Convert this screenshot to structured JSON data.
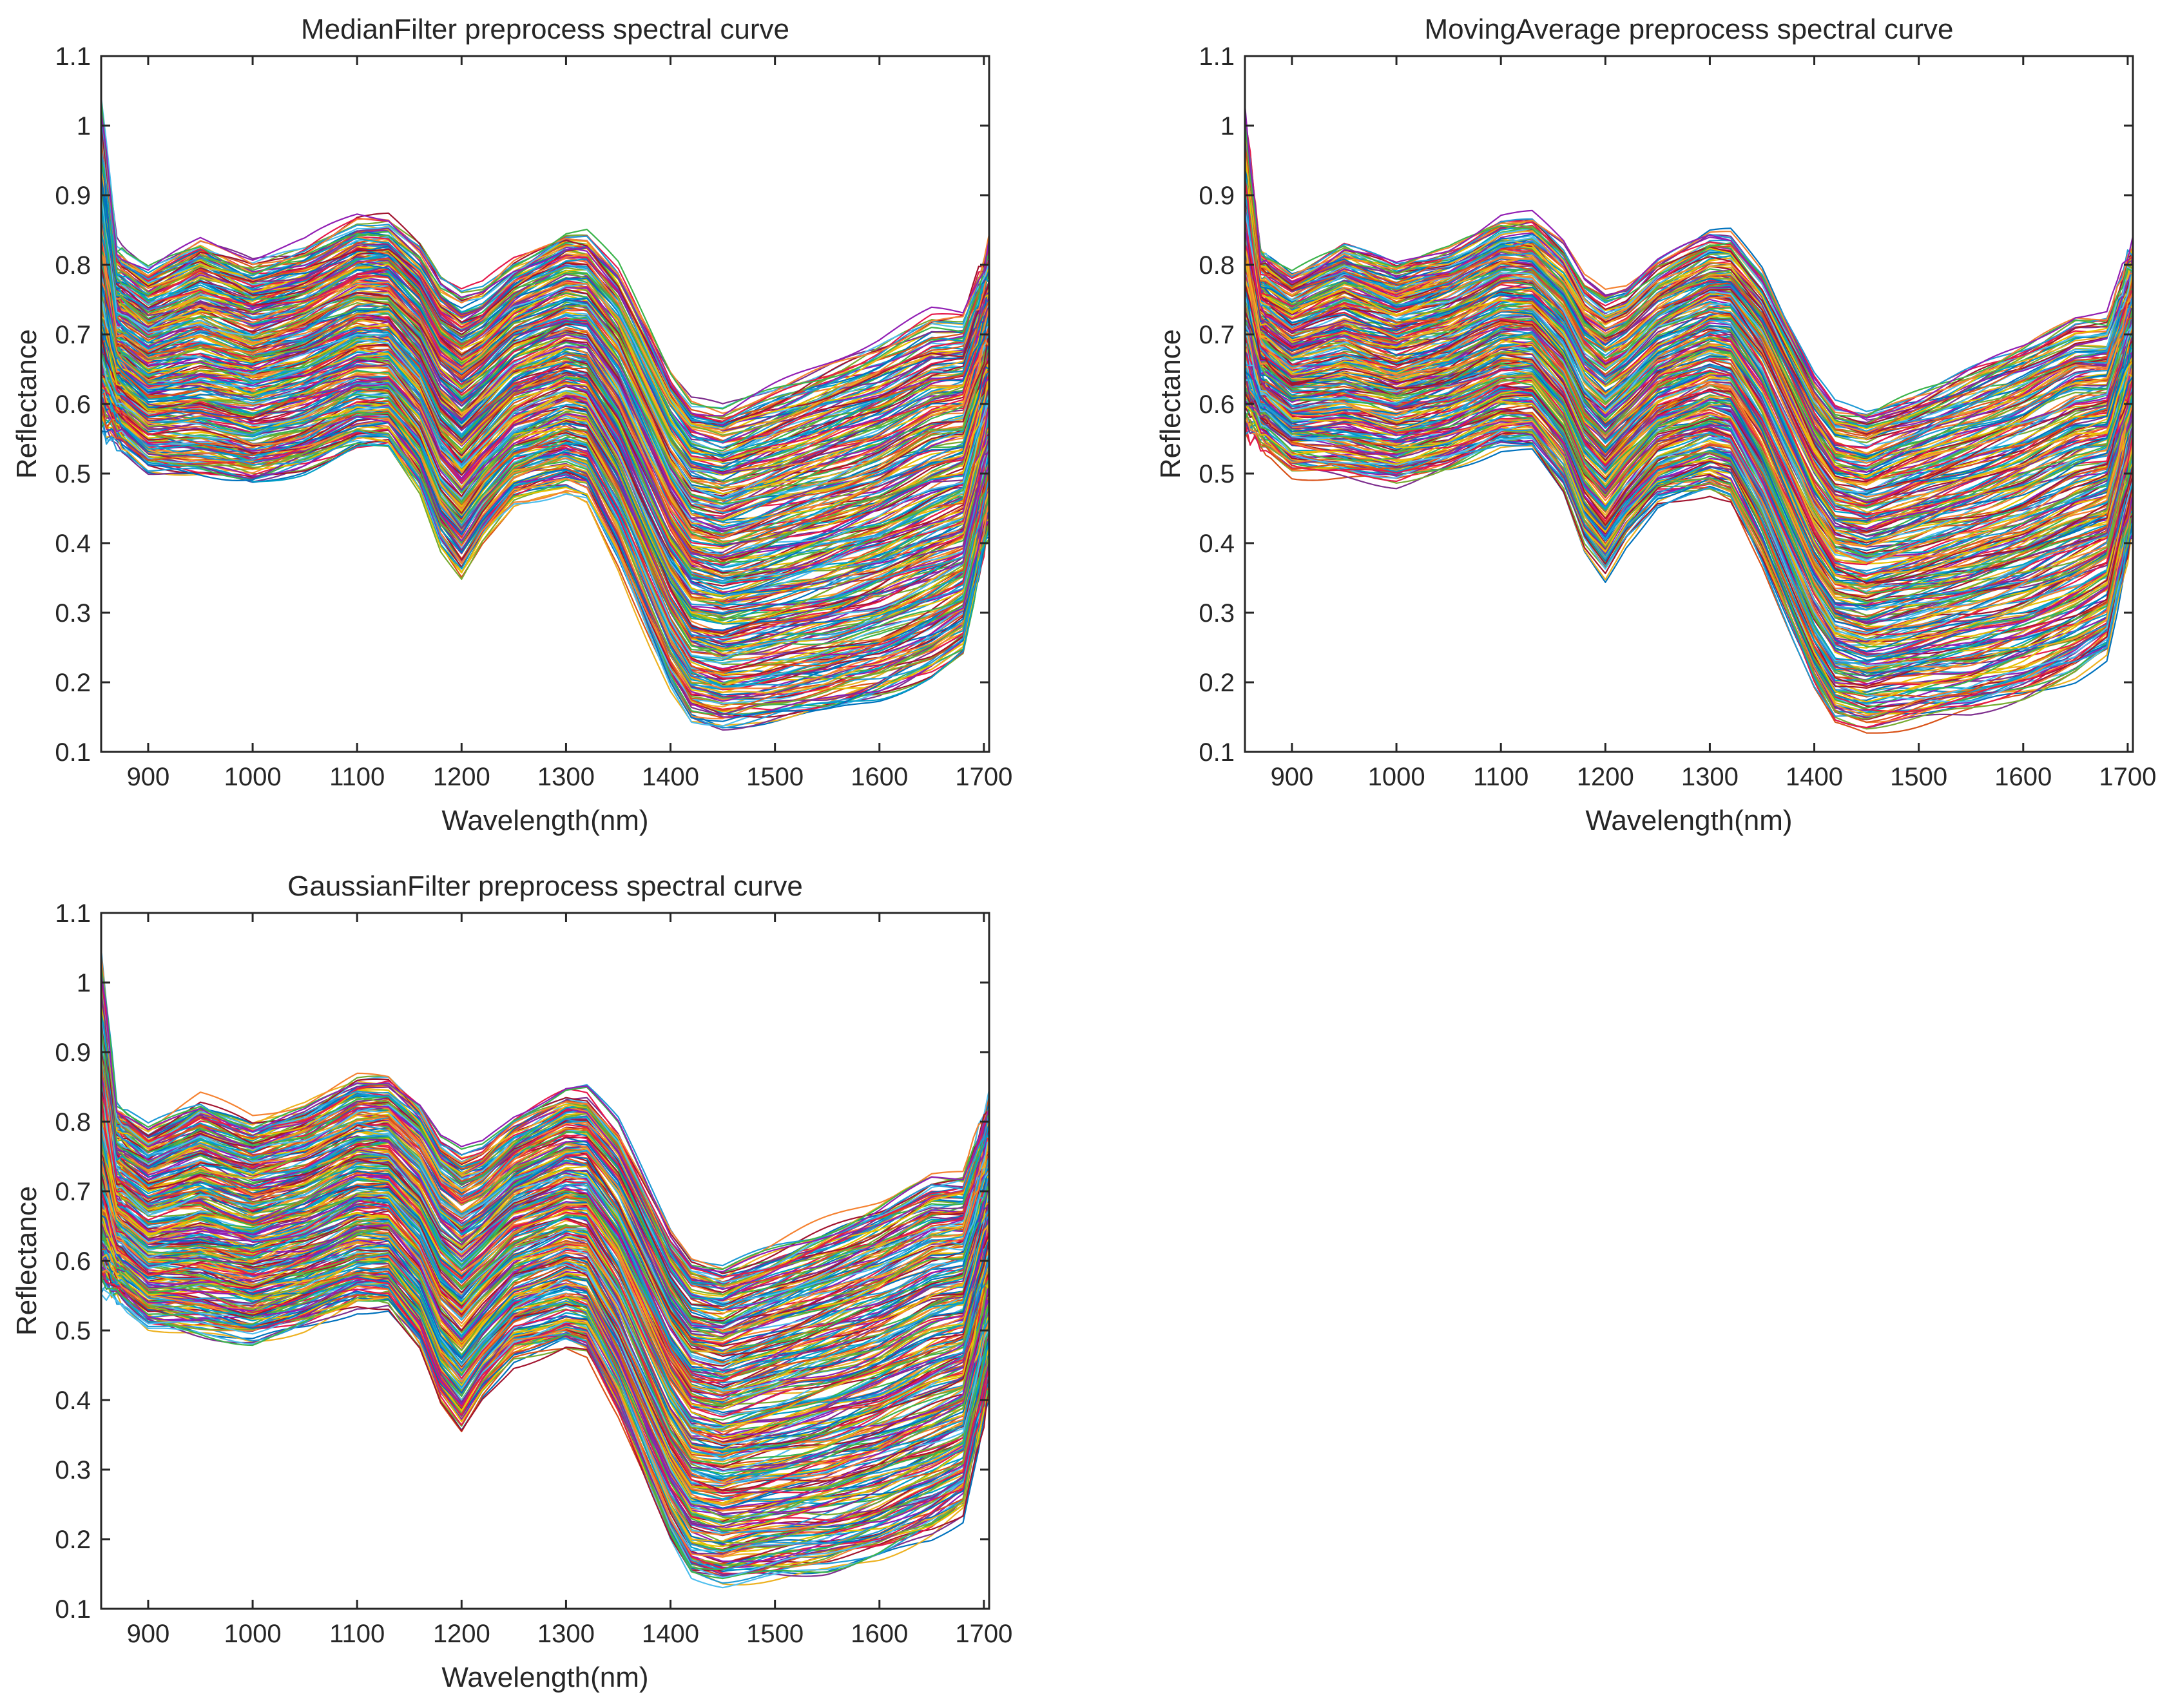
{
  "figure": {
    "description_panels": 3
  },
  "curve_colors": [
    "#0072BD",
    "#D95319",
    "#EDB120",
    "#7E2F8E",
    "#77AC30",
    "#4DBEEE",
    "#A2142F",
    "#E6194B",
    "#1F9BD6",
    "#F58231",
    "#3CB44B",
    "#911EB4",
    "#00A0C8",
    "#E6C200"
  ],
  "chart_data": [
    {
      "type": "line",
      "title": "MedianFilter preprocess spectral curve",
      "xlabel": "Wavelength(nm)",
      "ylabel": "Reflectance",
      "xlim": [
        855,
        1705
      ],
      "ylim": [
        0.1,
        1.1
      ],
      "xticks": [
        "900",
        "1000",
        "1100",
        "1200",
        "1300",
        "1400",
        "1500",
        "1600",
        "1700"
      ],
      "yticks": [
        "0.1",
        "0.2",
        "0.3",
        "0.4",
        "0.5",
        "0.6",
        "0.7",
        "0.8",
        "0.9",
        "1",
        "1.1"
      ],
      "series_count": 320,
      "envelope": {
        "x": [
          855,
          870,
          900,
          950,
          1000,
          1050,
          1100,
          1130,
          1160,
          1180,
          1200,
          1220,
          1250,
          1300,
          1320,
          1350,
          1380,
          1400,
          1420,
          1450,
          1500,
          1550,
          1600,
          1650,
          1680,
          1705
        ],
        "upper": [
          1.03,
          0.82,
          0.79,
          0.83,
          0.8,
          0.82,
          0.86,
          0.86,
          0.82,
          0.77,
          0.75,
          0.76,
          0.8,
          0.84,
          0.84,
          0.79,
          0.7,
          0.64,
          0.6,
          0.59,
          0.62,
          0.65,
          0.68,
          0.72,
          0.72,
          0.82
        ],
        "lower": [
          0.57,
          0.55,
          0.51,
          0.5,
          0.49,
          0.51,
          0.54,
          0.54,
          0.48,
          0.4,
          0.36,
          0.41,
          0.46,
          0.48,
          0.47,
          0.38,
          0.27,
          0.2,
          0.15,
          0.14,
          0.15,
          0.16,
          0.18,
          0.21,
          0.24,
          0.42
        ]
      }
    },
    {
      "type": "line",
      "title": "MovingAverage preprocess spectral curve",
      "xlabel": "Wavelength(nm)",
      "ylabel": "Reflectance",
      "xlim": [
        855,
        1705
      ],
      "ylim": [
        0.1,
        1.1
      ],
      "xticks": [
        "900",
        "1000",
        "1100",
        "1200",
        "1300",
        "1400",
        "1500",
        "1600",
        "1700"
      ],
      "yticks": [
        "0.1",
        "0.2",
        "0.3",
        "0.4",
        "0.5",
        "0.6",
        "0.7",
        "0.8",
        "0.9",
        "1",
        "1.1"
      ],
      "series_count": 320,
      "envelope": {
        "x": [
          855,
          870,
          900,
          950,
          1000,
          1050,
          1100,
          1130,
          1160,
          1180,
          1200,
          1220,
          1250,
          1300,
          1320,
          1350,
          1380,
          1400,
          1420,
          1450,
          1500,
          1550,
          1600,
          1650,
          1680,
          1705
        ],
        "upper": [
          1.02,
          0.82,
          0.79,
          0.83,
          0.8,
          0.82,
          0.86,
          0.86,
          0.82,
          0.77,
          0.75,
          0.76,
          0.8,
          0.84,
          0.84,
          0.79,
          0.7,
          0.64,
          0.6,
          0.59,
          0.62,
          0.65,
          0.68,
          0.72,
          0.72,
          0.82
        ],
        "lower": [
          0.57,
          0.55,
          0.51,
          0.5,
          0.49,
          0.51,
          0.54,
          0.54,
          0.48,
          0.4,
          0.36,
          0.41,
          0.46,
          0.48,
          0.47,
          0.38,
          0.27,
          0.2,
          0.15,
          0.14,
          0.15,
          0.16,
          0.18,
          0.21,
          0.24,
          0.42
        ]
      }
    },
    {
      "type": "line",
      "title": "GaussianFilter preprocess spectral curve",
      "xlabel": "Wavelength(nm)",
      "ylabel": "Reflectance",
      "xlim": [
        855,
        1705
      ],
      "ylim": [
        0.1,
        1.1
      ],
      "xticks": [
        "900",
        "1000",
        "1100",
        "1200",
        "1300",
        "1400",
        "1500",
        "1600",
        "1700"
      ],
      "yticks": [
        "0.1",
        "0.2",
        "0.3",
        "0.4",
        "0.5",
        "0.6",
        "0.7",
        "0.8",
        "0.9",
        "1",
        "1.1"
      ],
      "series_count": 320,
      "envelope": {
        "x": [
          855,
          870,
          900,
          950,
          1000,
          1050,
          1100,
          1130,
          1160,
          1180,
          1200,
          1220,
          1250,
          1300,
          1320,
          1350,
          1380,
          1400,
          1420,
          1450,
          1500,
          1550,
          1600,
          1650,
          1680,
          1705
        ],
        "upper": [
          1.03,
          0.82,
          0.79,
          0.83,
          0.8,
          0.82,
          0.86,
          0.86,
          0.82,
          0.77,
          0.75,
          0.76,
          0.8,
          0.84,
          0.84,
          0.79,
          0.7,
          0.64,
          0.6,
          0.59,
          0.62,
          0.65,
          0.68,
          0.72,
          0.72,
          0.83
        ],
        "lower": [
          0.57,
          0.55,
          0.51,
          0.5,
          0.49,
          0.51,
          0.54,
          0.54,
          0.48,
          0.4,
          0.36,
          0.41,
          0.46,
          0.48,
          0.47,
          0.38,
          0.27,
          0.2,
          0.15,
          0.14,
          0.15,
          0.16,
          0.18,
          0.21,
          0.24,
          0.42
        ]
      }
    }
  ]
}
